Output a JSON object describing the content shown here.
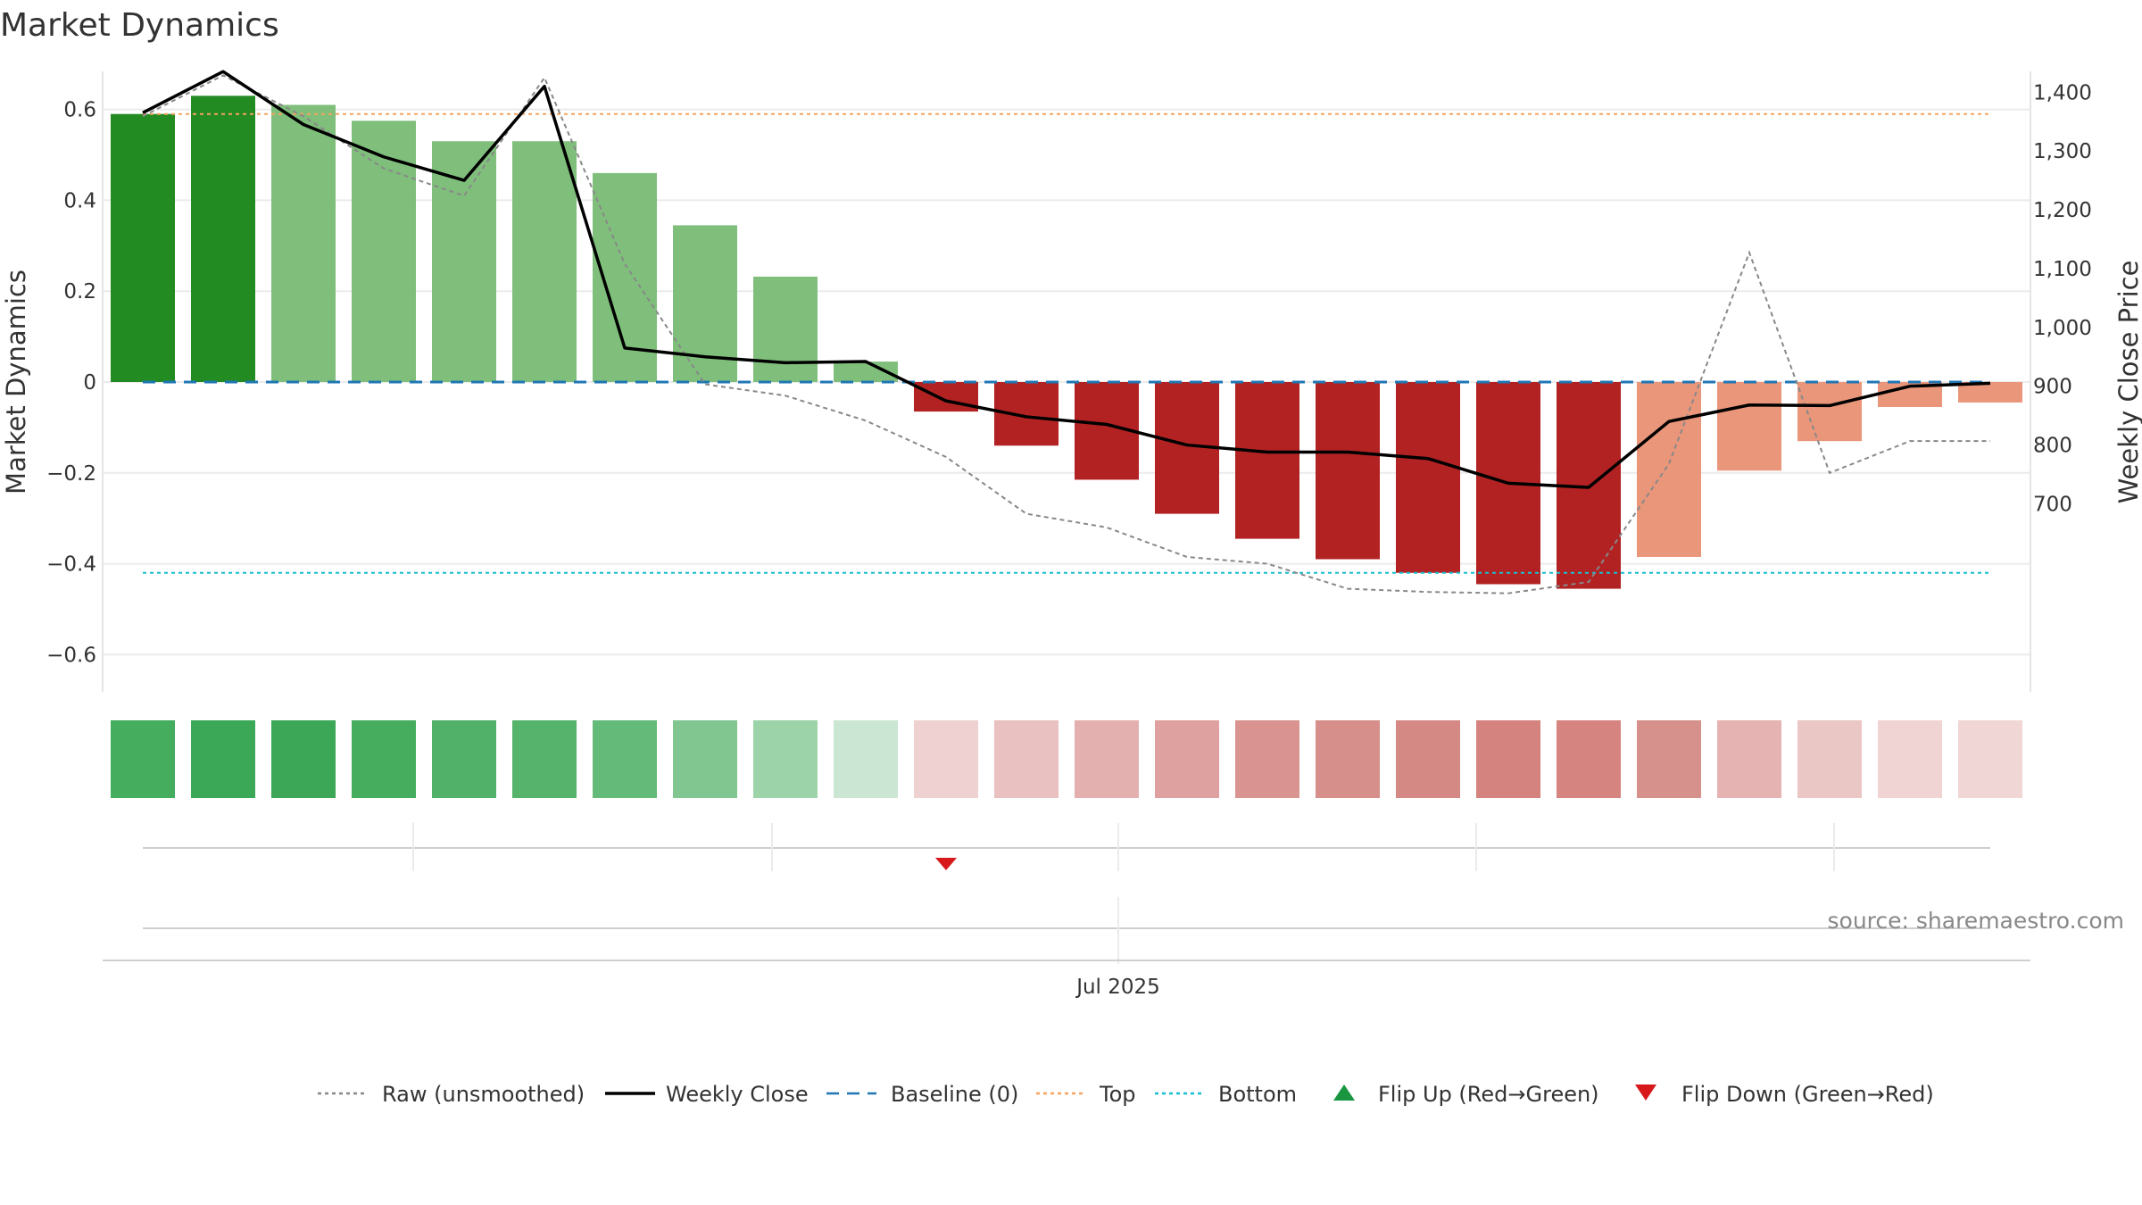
{
  "chart_data": {
    "type": "bar",
    "title": "Market Dynamics",
    "ylabel_left": "Market Dynamics",
    "ylabel_right": "Weekly Close Price",
    "xlabel": "",
    "x_tick_labels": [
      "Jul 2025"
    ],
    "ylim_left": [
      -0.68,
      0.68
    ],
    "ylim_right": [
      680,
      1440
    ],
    "left_ticks": [
      0.6,
      0.4,
      0.2,
      0,
      -0.2,
      -0.4,
      -0.6
    ],
    "left_tick_labels": [
      "0.6",
      "0.4",
      "0.2",
      "0",
      "−0.2",
      "−0.4",
      "−0.6"
    ],
    "right_ticks": [
      1400,
      1300,
      1200,
      1100,
      1000,
      900,
      800,
      700
    ],
    "right_tick_labels": [
      "1,400",
      "1,300",
      "1,200",
      "1,100",
      "1,000",
      "900",
      "800",
      "700"
    ],
    "grid": true,
    "legend_position": "bottom",
    "dynamics": [
      0.59,
      0.63,
      0.61,
      0.575,
      0.53,
      0.53,
      0.46,
      0.345,
      0.232,
      0.045,
      -0.065,
      -0.14,
      -0.215,
      -0.29,
      -0.345,
      -0.39,
      -0.42,
      -0.445,
      -0.455,
      -0.385,
      -0.195,
      -0.13,
      -0.055,
      -0.045
    ],
    "bar_colors": [
      "#228b22",
      "#228b22",
      "#7fbf7b",
      "#7fbf7b",
      "#7fbf7b",
      "#7fbf7b",
      "#7fbf7b",
      "#7fbf7b",
      "#7fbf7b",
      "#7fbf7b",
      "#b22222",
      "#b22222",
      "#b22222",
      "#b22222",
      "#b22222",
      "#b22222",
      "#b22222",
      "#b22222",
      "#b22222",
      "#e9967a",
      "#e9967a",
      "#e9967a",
      "#e9967a",
      "#e9967a"
    ],
    "raw": [
      0.585,
      0.675,
      0.585,
      0.47,
      0.41,
      0.67,
      0.26,
      -0.005,
      -0.03,
      -0.085,
      -0.165,
      -0.29,
      -0.32,
      -0.385,
      -0.4,
      -0.455,
      -0.462,
      -0.465,
      -0.44,
      -0.18,
      0.285,
      -0.2,
      -0.13,
      -0.13
    ],
    "weekly_close": [
      1365,
      1435,
      1345,
      1290,
      1250,
      1410,
      965,
      950,
      940,
      942,
      875,
      848,
      835,
      800,
      788,
      788,
      777,
      735,
      728,
      840,
      868,
      867,
      900,
      905
    ],
    "top": 0.59,
    "bottom": -0.42,
    "baseline": 0,
    "strip_colors": [
      "#44ad5e",
      "#3aa857",
      "#3ca857",
      "#46ad5f",
      "#51b168",
      "#55b36b",
      "#64ba78",
      "#81c691",
      "#9dd3a9",
      "#cbe7d3",
      "#efd1d1",
      "#e9c1c0",
      "#e4b0af",
      "#dfa19f",
      "#d99491",
      "#d68f8b",
      "#d48984",
      "#d4837e",
      "#d58480",
      "#d7918c",
      "#e5b3b1",
      "#eac6c4",
      "#efd4d3",
      "#f0d6d5"
    ],
    "flip_down_index": 10,
    "source": "source: sharemaestro.com",
    "legend": [
      {
        "label": "Raw (unsmoothed)",
        "color": "#888888",
        "style": "dotted-line"
      },
      {
        "label": "Weekly Close",
        "color": "#000000",
        "style": "solid-line"
      },
      {
        "label": "Baseline (0)",
        "color": "#1f77b4",
        "style": "dashed-line"
      },
      {
        "label": "Top",
        "color": "#f4a460",
        "style": "dotted-line"
      },
      {
        "label": "Bottom",
        "color": "#17becf",
        "style": "dotted-line"
      },
      {
        "label": "Flip Up (Red→Green)",
        "color": "#1a9641",
        "style": "triangle-up"
      },
      {
        "label": "Flip Down (Green→Red)",
        "color": "#d7191c",
        "style": "triangle-down"
      }
    ]
  }
}
